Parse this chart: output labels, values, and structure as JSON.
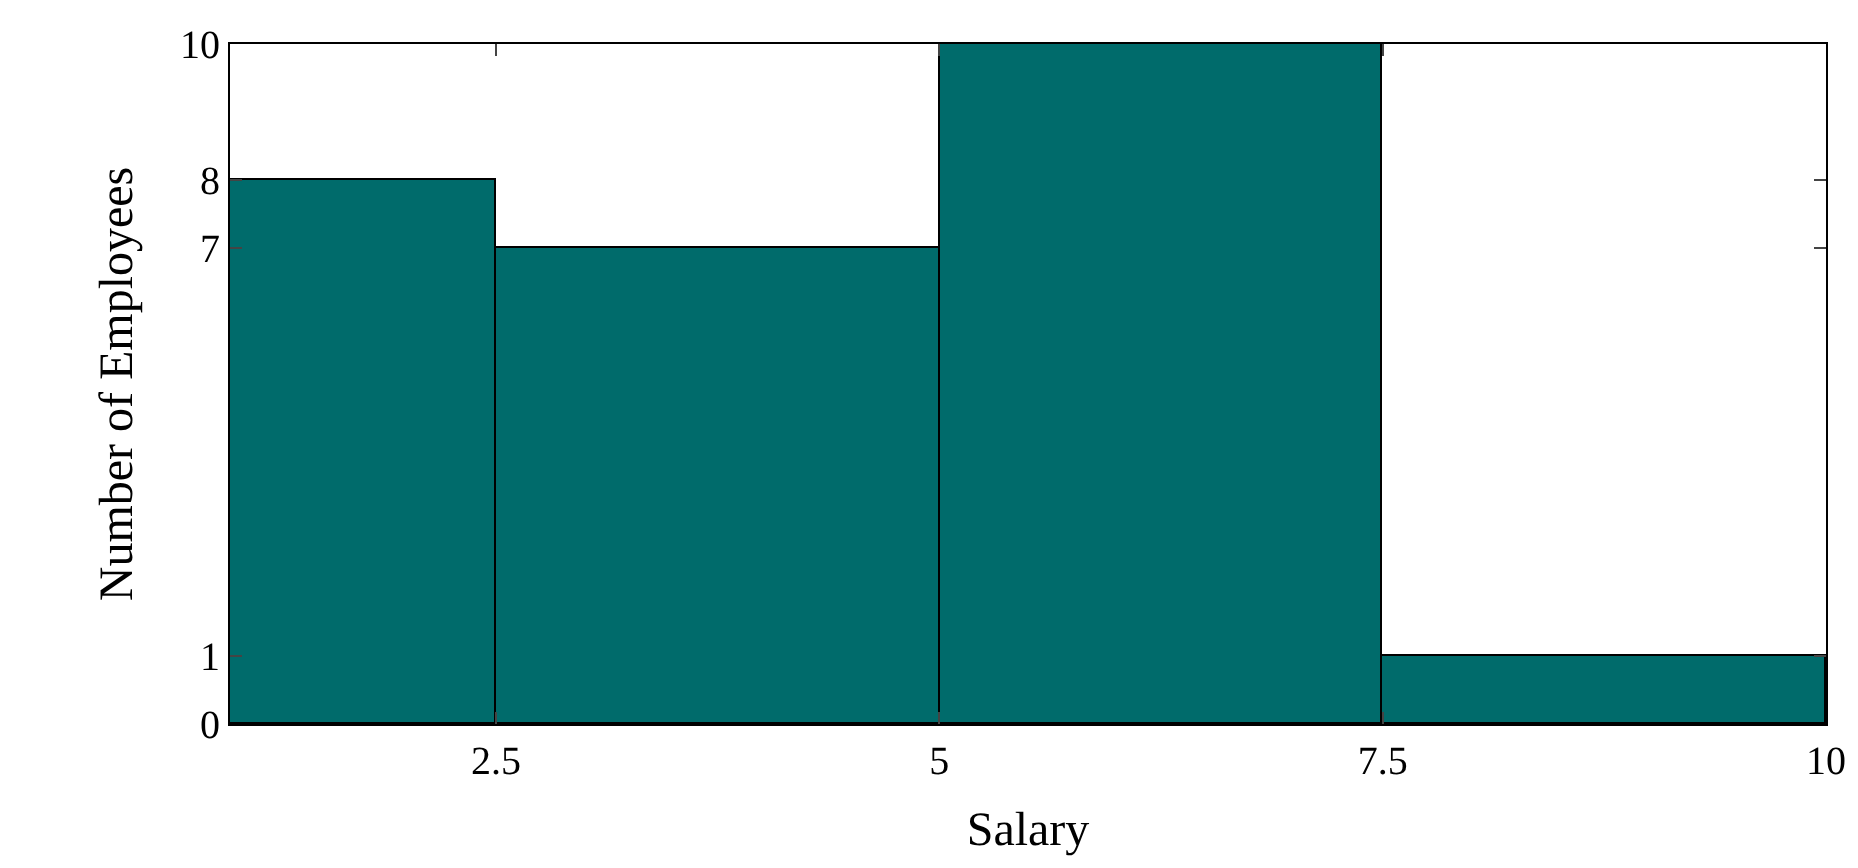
{
  "chart_data": {
    "type": "histogram",
    "xlabel": "Salary",
    "ylabel": "Number of Employees",
    "bins": [
      1,
      2.5,
      5,
      7.5,
      10
    ],
    "values": [
      8,
      7,
      10,
      1
    ],
    "color": "#006b6b",
    "xlim": [
      1,
      10
    ],
    "xticks": [
      2.5,
      5,
      7.5,
      10
    ],
    "ylim": [
      0,
      10
    ],
    "yticks": [
      0,
      1,
      7,
      8,
      10
    ],
    "grid": false
  }
}
